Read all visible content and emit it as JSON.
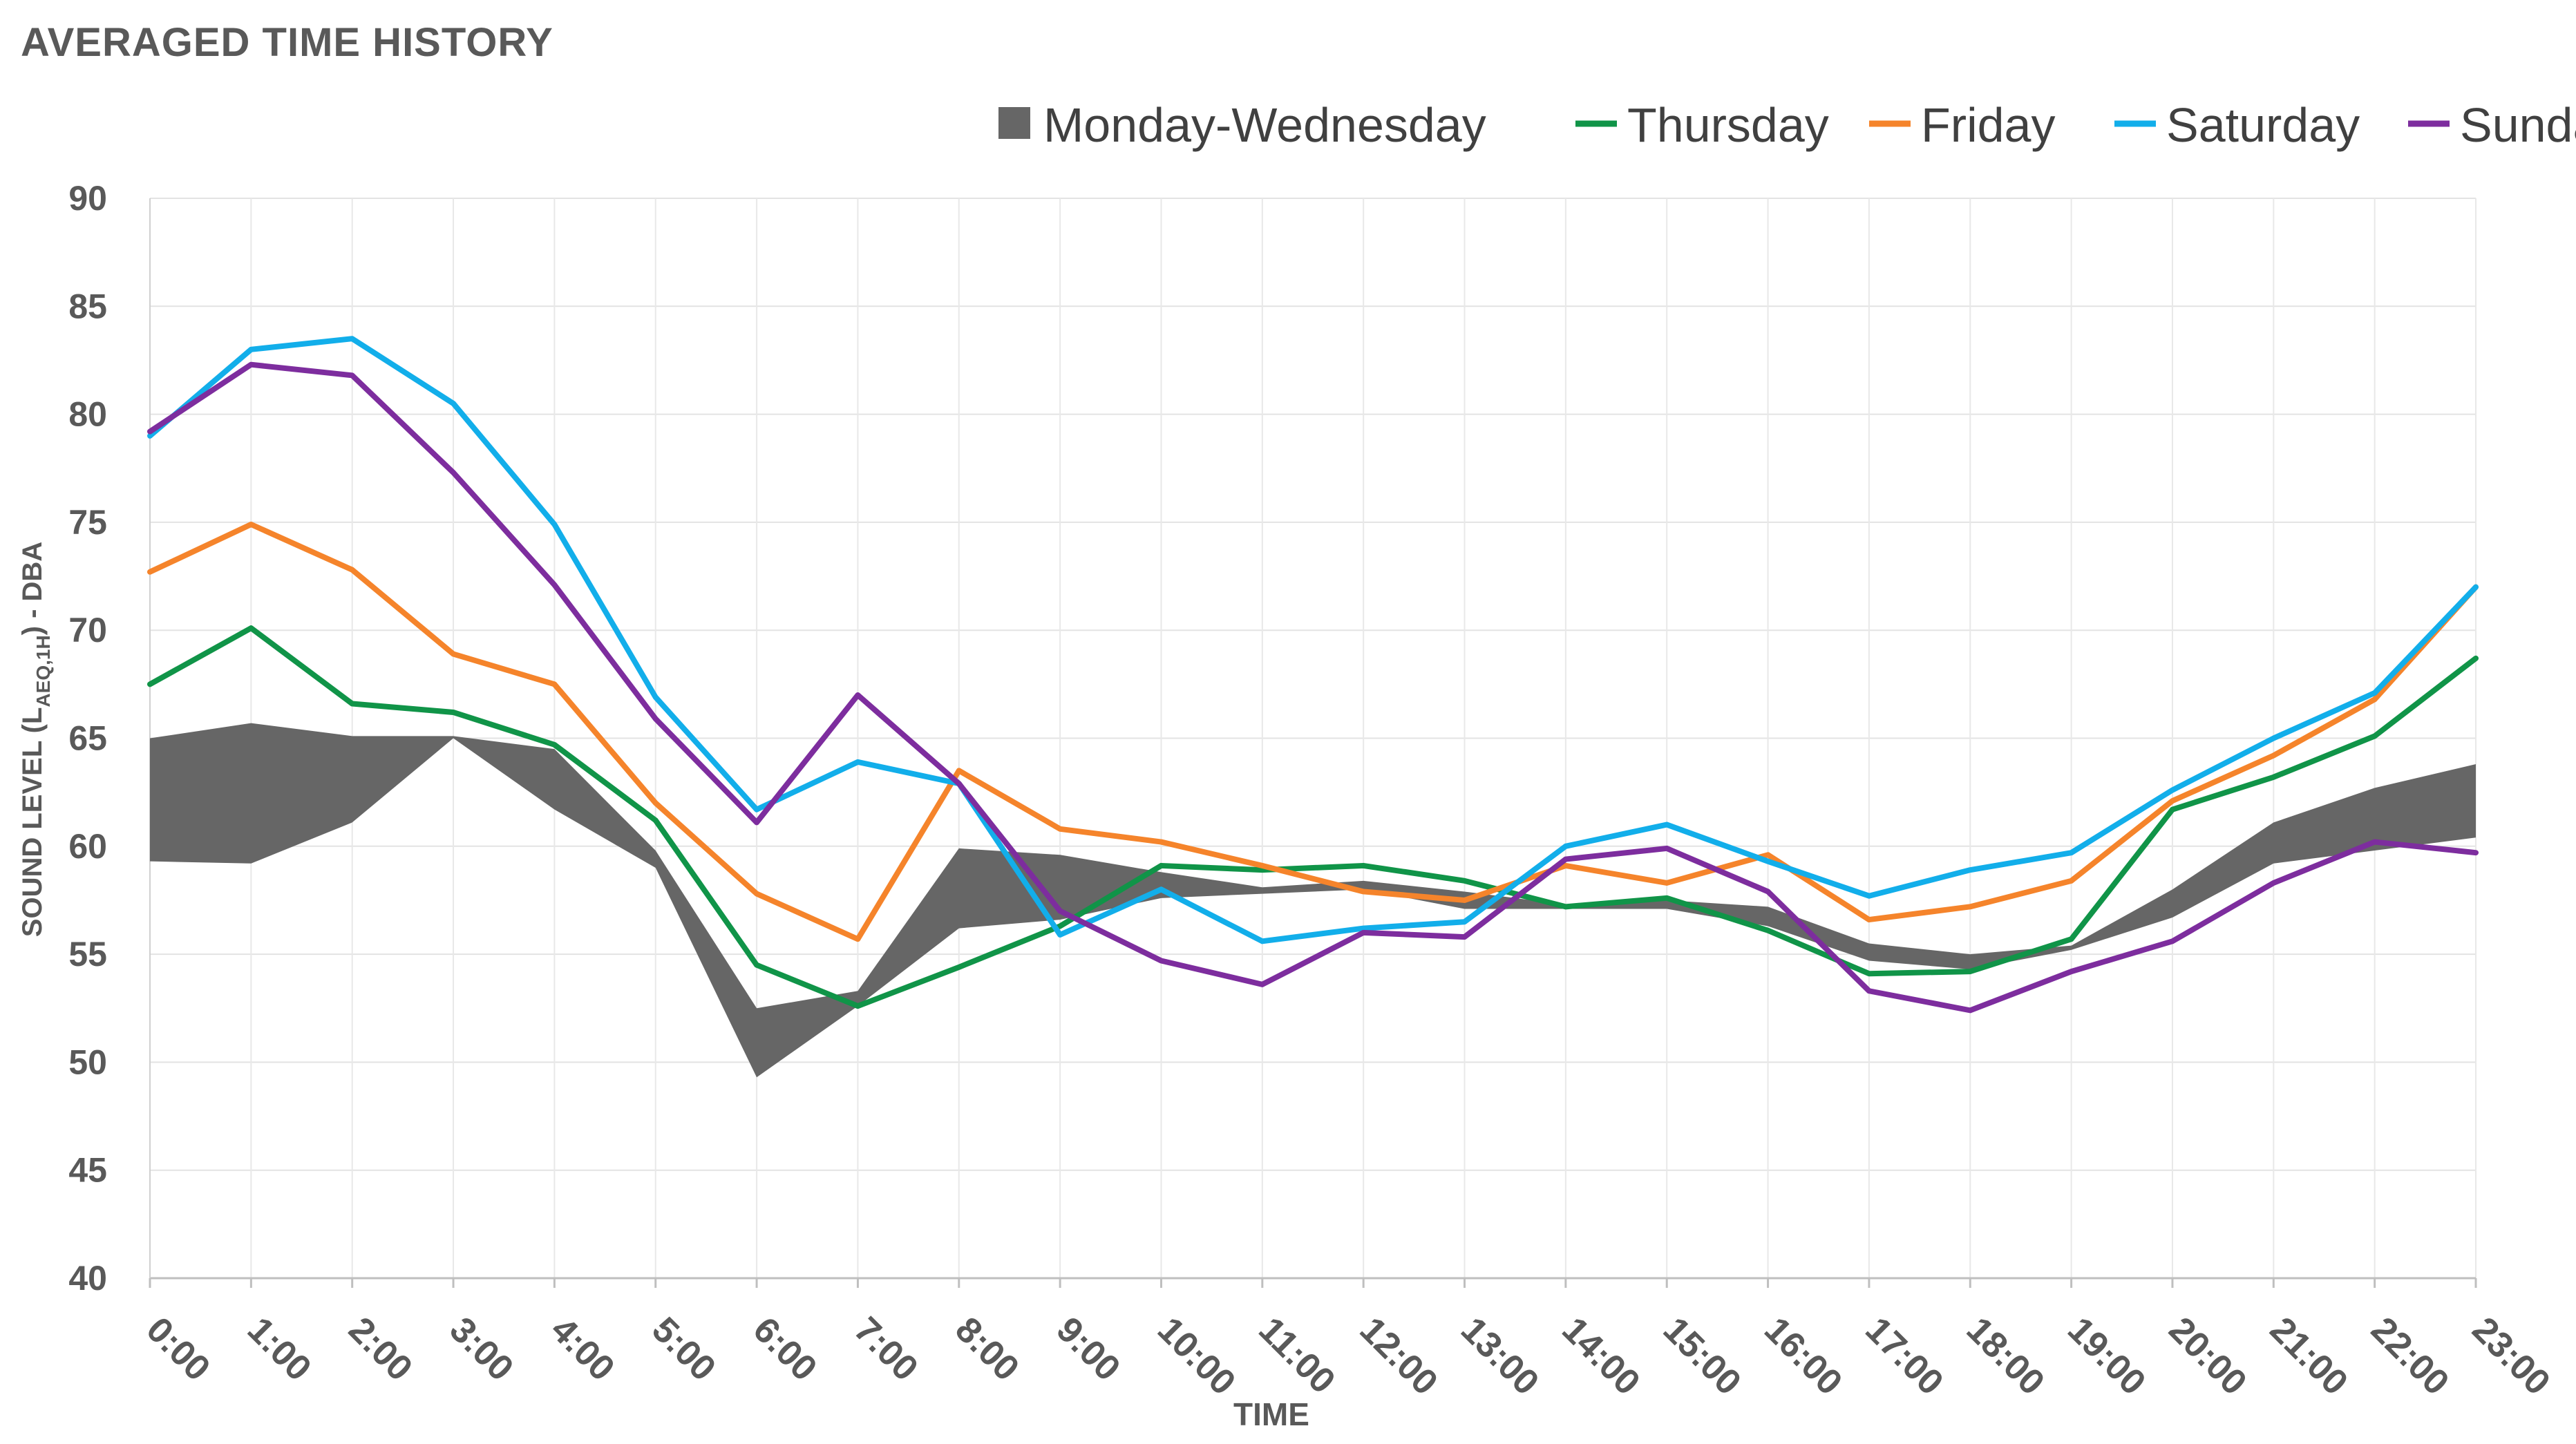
{
  "chart_data": {
    "type": "line",
    "title": "AVERAGED TIME HISTORY",
    "xlabel": "TIME",
    "ylabel_parts": [
      "SOUND LEVEL (L",
      "AEQ,1H",
      ") - DBA"
    ],
    "ylim": [
      40,
      90
    ],
    "ytick_values": [
      40,
      45,
      50,
      55,
      60,
      65,
      70,
      75,
      80,
      85,
      90
    ],
    "categories": [
      "0:00",
      "1:00",
      "2:00",
      "3:00",
      "4:00",
      "5:00",
      "6:00",
      "7:00",
      "8:00",
      "9:00",
      "10:00",
      "11:00",
      "12:00",
      "13:00",
      "14:00",
      "15:00",
      "16:00",
      "17:00",
      "18:00",
      "19:00",
      "20:00",
      "21:00",
      "22:00",
      "23:00"
    ],
    "band": {
      "name": "Monday-Wednesday",
      "color": "#666666",
      "upper": [
        65.0,
        65.7,
        65.1,
        65.1,
        64.5,
        59.8,
        52.5,
        53.3,
        59.9,
        59.6,
        58.8,
        58.1,
        58.4,
        57.9,
        57.3,
        57.5,
        57.2,
        55.5,
        55.0,
        55.4,
        58.0,
        61.1,
        62.7,
        63.8
      ],
      "lower": [
        59.3,
        59.2,
        61.1,
        65.0,
        61.7,
        59.0,
        49.3,
        52.6,
        56.2,
        56.6,
        57.6,
        57.8,
        58.0,
        57.1,
        57.1,
        57.1,
        56.3,
        54.7,
        54.3,
        55.2,
        56.7,
        59.2,
        59.8,
        60.4
      ]
    },
    "series": [
      {
        "name": "Thursday",
        "color": "#109448",
        "values": [
          67.5,
          70.1,
          66.6,
          66.2,
          64.7,
          61.2,
          54.5,
          52.6,
          54.4,
          56.3,
          59.1,
          58.9,
          59.1,
          58.4,
          57.2,
          57.6,
          56.1,
          54.1,
          54.2,
          55.7,
          61.7,
          63.2,
          65.1,
          68.7
        ]
      },
      {
        "name": "Friday",
        "color": "#F5842B",
        "values": [
          72.7,
          74.9,
          72.8,
          68.9,
          67.5,
          62.0,
          57.8,
          55.7,
          63.5,
          60.8,
          60.2,
          59.1,
          57.9,
          57.5,
          59.1,
          58.3,
          59.6,
          56.6,
          57.2,
          58.4,
          62.1,
          64.2,
          66.8,
          72.0
        ]
      },
      {
        "name": "Saturday",
        "color": "#12AEEA",
        "values": [
          79.0,
          83.0,
          83.5,
          80.5,
          74.9,
          66.9,
          61.7,
          63.9,
          62.9,
          55.9,
          58.0,
          55.6,
          56.2,
          56.5,
          60.0,
          61.0,
          59.3,
          57.7,
          58.9,
          59.7,
          62.6,
          65.0,
          67.1,
          72.0
        ]
      },
      {
        "name": "Sunday",
        "color": "#7D2D9E",
        "values": [
          79.2,
          82.3,
          81.8,
          77.3,
          72.1,
          65.9,
          61.1,
          67.0,
          62.9,
          57.0,
          54.7,
          53.6,
          56.0,
          55.8,
          59.4,
          59.9,
          57.9,
          53.3,
          52.4,
          54.2,
          55.6,
          58.3,
          60.2,
          59.7
        ]
      }
    ],
    "legend": [
      "Monday-Wednesday",
      "Thursday",
      "Friday",
      "Saturday",
      "Sunday"
    ],
    "legend_position": "top-right",
    "grid": true
  }
}
